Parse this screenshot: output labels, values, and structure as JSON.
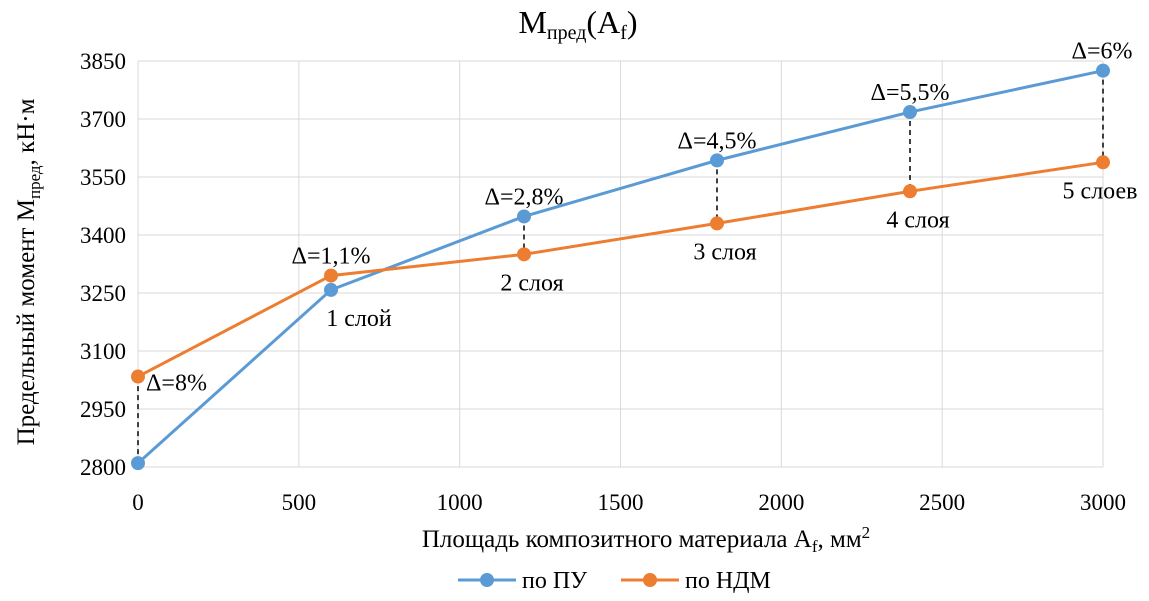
{
  "chart_data": {
    "type": "line",
    "title": {
      "main": "M",
      "sub": "пред",
      "open": "(A",
      "sub2": "f",
      "close": ")"
    },
    "xlabel": {
      "main": "Площадь композитного материала A",
      "sub": "f",
      "unit": ", мм",
      "sup": "2"
    },
    "ylabel": {
      "main": "Предельный момент M",
      "sub": "пред",
      "unit": ", кН·м"
    },
    "x": [
      0,
      600,
      1200,
      1800,
      2400,
      3000
    ],
    "xlim": [
      0,
      3000
    ],
    "ylim": [
      2800,
      3850
    ],
    "xticks": [
      0,
      500,
      1000,
      1500,
      2000,
      2500,
      3000
    ],
    "yticks": [
      2800,
      2950,
      3100,
      3250,
      3400,
      3550,
      3700,
      3850
    ],
    "grid": true,
    "legend_position": "bottom",
    "series": [
      {
        "name": "по ПУ",
        "color": "#5b9bd5",
        "values": [
          2810,
          3258,
          3448,
          3593,
          3718,
          3825
        ]
      },
      {
        "name": "по НДМ",
        "color": "#ed7d31",
        "values": [
          3034,
          3295,
          3350,
          3430,
          3513,
          3588
        ]
      }
    ],
    "delta_labels": [
      "Δ=8%",
      "Δ=1,1%",
      "Δ=2,8%",
      "Δ=4,5%",
      "Δ=5,5%",
      "Δ=6%"
    ],
    "layer_labels": [
      "",
      "1 слой",
      "2 слоя",
      "3 слоя",
      "4 слоя",
      "5 слоев"
    ]
  }
}
